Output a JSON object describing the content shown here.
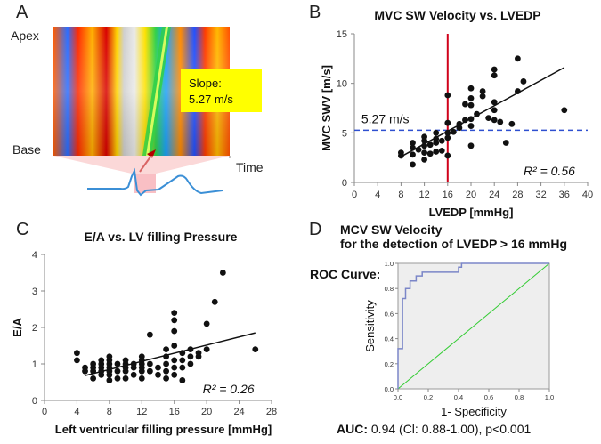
{
  "panels": {
    "A": {
      "letter": "A",
      "label_apex": "Apex",
      "label_base": "Base",
      "label_time": "Time",
      "slope_label": "Slope:",
      "slope_value": "5.27 m/s"
    },
    "B": {
      "letter": "B",
      "title": "MVC SW Velocity vs. LVEDP",
      "ylabel": "MVC SWV [m/s]",
      "xlabel": "LVEDP [mmHg]",
      "threshold_label": "5.27 m/s",
      "r2_label": "R² = 0.56"
    },
    "C": {
      "letter": "C",
      "title": "E/A vs. LV filling Pressure",
      "ylabel": "E/A",
      "xlabel": "Left ventricular filling pressure [mmHg]",
      "r2_label": "R² = 0.26"
    },
    "D": {
      "letter": "D",
      "title_line1": "MCV SW Velocity",
      "title_line2": "for the detection of LVEDP > 16 mmHg",
      "roc_label": "ROC Curve:",
      "ylabel": "Sensitivity",
      "xlabel": "1- Specificity",
      "auc_label": "AUC:",
      "auc_text": " 0.94 (Cl: 0.88-1.00), p<0.001"
    }
  },
  "colors": {
    "vertical_line": "#d0021b",
    "threshold_line": "#2e4fd0",
    "roc_curve": "#7b86c8",
    "diagonal": "#33cc33",
    "slope_box": "#ffff00",
    "ecg_trace": "#3b8fd6"
  },
  "chart_data": [
    {
      "id": "B",
      "type": "scatter",
      "title": "MVC SW Velocity vs. LVEDP",
      "xlabel": "LVEDP [mmHg]",
      "ylabel": "MVC SWV [m/s]",
      "xlim": [
        0,
        40
      ],
      "ylim": [
        0,
        15
      ],
      "xticks": [
        0,
        4,
        8,
        12,
        16,
        20,
        24,
        28,
        32,
        36,
        40
      ],
      "yticks": [
        0,
        5,
        10,
        15
      ],
      "vline_x": 16,
      "hline_y": 5.27,
      "trend": [
        [
          8,
          2.6
        ],
        [
          36,
          11.6
        ]
      ],
      "r2": 0.56,
      "points": [
        [
          8,
          2.7
        ],
        [
          8,
          3.0
        ],
        [
          10,
          1.8
        ],
        [
          10,
          2.8
        ],
        [
          10,
          3.5
        ],
        [
          10,
          4.0
        ],
        [
          11,
          3.3
        ],
        [
          12,
          2.3
        ],
        [
          12,
          3.0
        ],
        [
          12,
          3.7
        ],
        [
          12,
          4.2
        ],
        [
          12,
          4.6
        ],
        [
          13,
          2.9
        ],
        [
          13,
          3.8
        ],
        [
          14,
          3.1
        ],
        [
          14,
          4.0
        ],
        [
          14,
          4.4
        ],
        [
          14,
          5.0
        ],
        [
          15,
          3.2
        ],
        [
          15,
          4.2
        ],
        [
          16,
          2.7
        ],
        [
          16,
          4.5
        ],
        [
          16,
          5.0
        ],
        [
          16,
          6.0
        ],
        [
          16,
          8.8
        ],
        [
          17,
          5.1
        ],
        [
          18,
          5.5
        ],
        [
          18,
          5.9
        ],
        [
          19,
          6.3
        ],
        [
          19,
          7.9
        ],
        [
          20,
          3.7
        ],
        [
          20,
          5.7
        ],
        [
          20,
          6.4
        ],
        [
          20,
          7.8
        ],
        [
          20,
          8.5
        ],
        [
          20,
          9.5
        ],
        [
          21,
          6.9
        ],
        [
          22,
          8.7
        ],
        [
          22,
          9.2
        ],
        [
          23,
          6.5
        ],
        [
          24,
          6.3
        ],
        [
          24,
          7.3
        ],
        [
          24,
          8.1
        ],
        [
          24,
          10.8
        ],
        [
          24,
          11.4
        ],
        [
          25,
          6.1
        ],
        [
          26,
          4.0
        ],
        [
          27,
          5.9
        ],
        [
          28,
          9.2
        ],
        [
          28,
          12.5
        ],
        [
          29,
          10.2
        ],
        [
          36,
          7.3
        ]
      ]
    },
    {
      "id": "C",
      "type": "scatter",
      "title": "E/A vs. LV filling Pressure",
      "xlabel": "Left ventricular filling pressure [mmHg]",
      "ylabel": "E/A",
      "xlim": [
        0,
        28
      ],
      "ylim": [
        0,
        4
      ],
      "xticks": [
        0,
        4,
        8,
        12,
        16,
        20,
        24,
        28
      ],
      "yticks": [
        0,
        1,
        2,
        3,
        4
      ],
      "trend": [
        [
          5,
          0.68
        ],
        [
          26,
          1.85
        ]
      ],
      "r2": 0.26,
      "points": [
        [
          4,
          1.1
        ],
        [
          4,
          1.3
        ],
        [
          5,
          0.8
        ],
        [
          5,
          0.9
        ],
        [
          6,
          0.6
        ],
        [
          6,
          0.8
        ],
        [
          6,
          0.9
        ],
        [
          6,
          1.0
        ],
        [
          7,
          0.7
        ],
        [
          7,
          0.8
        ],
        [
          7,
          0.9
        ],
        [
          7,
          1.0
        ],
        [
          7,
          1.1
        ],
        [
          8,
          0.55
        ],
        [
          8,
          0.7
        ],
        [
          8,
          0.8
        ],
        [
          8,
          0.9
        ],
        [
          8,
          1.0
        ],
        [
          8,
          1.1
        ],
        [
          8,
          1.2
        ],
        [
          9,
          0.6
        ],
        [
          9,
          0.8
        ],
        [
          9,
          1.0
        ],
        [
          10,
          0.6
        ],
        [
          10,
          0.8
        ],
        [
          10,
          0.9
        ],
        [
          10,
          1.0
        ],
        [
          10,
          1.1
        ],
        [
          11,
          0.7
        ],
        [
          11,
          0.9
        ],
        [
          11,
          1.0
        ],
        [
          12,
          0.6
        ],
        [
          12,
          0.8
        ],
        [
          12,
          0.9
        ],
        [
          12,
          1.0
        ],
        [
          12,
          1.1
        ],
        [
          12,
          1.2
        ],
        [
          13,
          0.8
        ],
        [
          13,
          1.0
        ],
        [
          13,
          1.8
        ],
        [
          14,
          0.7
        ],
        [
          14,
          0.9
        ],
        [
          15,
          0.6
        ],
        [
          15,
          0.8
        ],
        [
          15,
          1.0
        ],
        [
          15,
          1.2
        ],
        [
          15,
          1.4
        ],
        [
          16,
          0.7
        ],
        [
          16,
          0.9
        ],
        [
          16,
          1.1
        ],
        [
          16,
          1.5
        ],
        [
          16,
          1.9
        ],
        [
          16,
          2.2
        ],
        [
          16,
          2.4
        ],
        [
          17,
          0.55
        ],
        [
          17,
          0.9
        ],
        [
          17,
          1.1
        ],
        [
          17,
          1.3
        ],
        [
          18,
          1.0
        ],
        [
          18,
          1.2
        ],
        [
          18,
          1.4
        ],
        [
          19,
          1.2
        ],
        [
          19,
          1.3
        ],
        [
          20,
          1.4
        ],
        [
          20,
          2.1
        ],
        [
          21,
          2.7
        ],
        [
          22,
          3.5
        ],
        [
          26,
          1.4
        ]
      ]
    },
    {
      "id": "D",
      "type": "line",
      "title": "ROC Curve",
      "xlabel": "1- Specificity",
      "ylabel": "Sensitivity",
      "xlim": [
        0,
        1
      ],
      "ylim": [
        0,
        1
      ],
      "xticks": [
        0.0,
        0.2,
        0.4,
        0.6,
        0.8,
        1.0
      ],
      "yticks": [
        0.0,
        0.2,
        0.4,
        0.6,
        0.8,
        1.0
      ],
      "auc": 0.94,
      "roc": [
        [
          0,
          0
        ],
        [
          0,
          0.32
        ],
        [
          0.03,
          0.32
        ],
        [
          0.03,
          0.72
        ],
        [
          0.05,
          0.72
        ],
        [
          0.05,
          0.8
        ],
        [
          0.08,
          0.8
        ],
        [
          0.08,
          0.86
        ],
        [
          0.12,
          0.86
        ],
        [
          0.12,
          0.9
        ],
        [
          0.16,
          0.9
        ],
        [
          0.16,
          0.93
        ],
        [
          0.4,
          0.93
        ],
        [
          0.4,
          0.97
        ],
        [
          0.42,
          0.97
        ],
        [
          0.42,
          1.0
        ],
        [
          1,
          1.0
        ]
      ],
      "diagonal": [
        [
          0,
          0
        ],
        [
          1,
          1
        ]
      ]
    }
  ]
}
